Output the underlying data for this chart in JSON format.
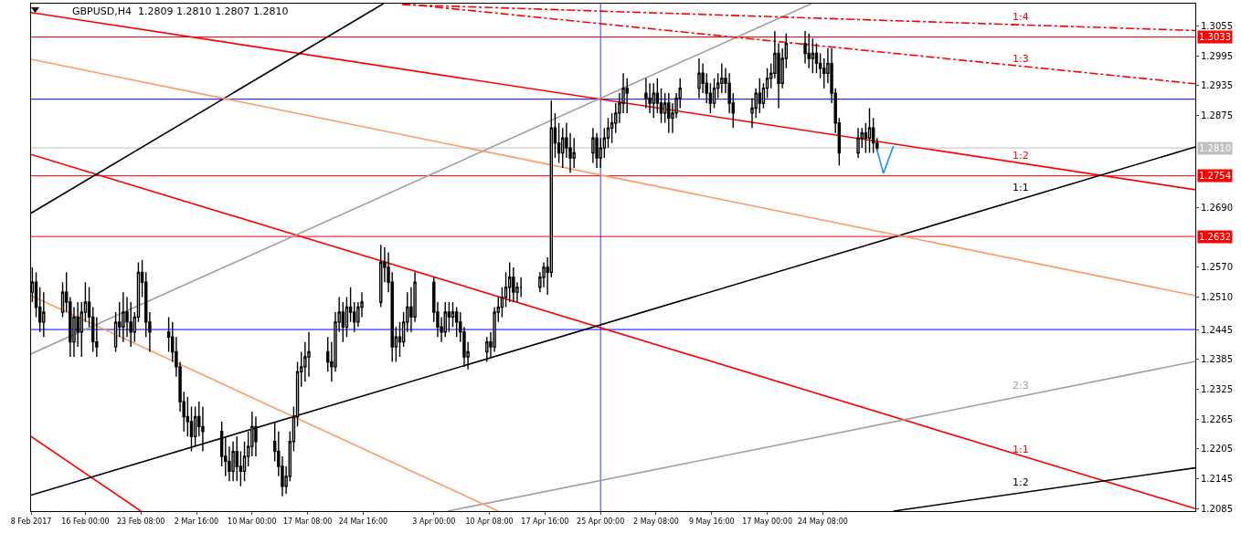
{
  "chart_data": {
    "type": "candlestick",
    "title": "GBPUSD,H4  1.2809 1.2810 1.2807 1.2810",
    "color": "#000000",
    "x": [
      "2017-02-09T00:00",
      "2017-02-09T12:00",
      "2017-02-10T00:00",
      "2017-02-10T12:00",
      "2017-02-13T00:00",
      "2017-02-13T12:00",
      "2017-02-14T00:00",
      "2017-02-14T12:00",
      "2017-02-15T00:00",
      "2017-02-15T12:00",
      "2017-02-16T00:00",
      "2017-02-16T12:00",
      "2017-02-17T00:00",
      "2017-02-17T12:00",
      "2017-02-20T00:00",
      "2017-02-20T12:00",
      "2017-02-21T00:00",
      "2017-02-21T12:00",
      "2017-02-22T00:00",
      "2017-02-22T12:00",
      "2017-02-23T00:00",
      "2017-02-23T12:00",
      "2017-02-24T00:00",
      "2017-02-24T12:00",
      "2017-02-27T00:00",
      "2017-02-27T12:00",
      "2017-02-28T00:00",
      "2017-02-28T12:00",
      "2017-03-01T00:00",
      "2017-03-01T12:00",
      "2017-03-02T00:00",
      "2017-03-02T12:00",
      "2017-03-03T00:00",
      "2017-03-03T12:00",
      "2017-03-06T00:00",
      "2017-03-06T12:00",
      "2017-03-07T00:00",
      "2017-03-07T12:00",
      "2017-03-08T00:00",
      "2017-03-08T12:00",
      "2017-03-09T00:00",
      "2017-03-09T12:00",
      "2017-03-10T00:00",
      "2017-03-10T12:00",
      "2017-03-13T00:00",
      "2017-03-13T12:00",
      "2017-03-14T00:00",
      "2017-03-14T12:00",
      "2017-03-15T00:00",
      "2017-03-15T12:00",
      "2017-03-16T00:00",
      "2017-03-16T12:00",
      "2017-03-17T00:00",
      "2017-03-17T12:00",
      "2017-03-20T00:00",
      "2017-03-20T12:00",
      "2017-03-21T00:00",
      "2017-03-21T12:00",
      "2017-03-22T00:00",
      "2017-03-22T12:00",
      "2017-03-23T00:00",
      "2017-03-23T12:00",
      "2017-03-24T00:00",
      "2017-03-24T12:00",
      "2017-03-27T00:00",
      "2017-03-27T12:00",
      "2017-03-28T00:00",
      "2017-03-28T12:00",
      "2017-03-29T00:00",
      "2017-03-29T12:00",
      "2017-03-30T00:00",
      "2017-03-30T12:00",
      "2017-03-31T00:00",
      "2017-03-31T12:00",
      "2017-04-03T00:00",
      "2017-04-03T12:00",
      "2017-04-04T00:00",
      "2017-04-04T12:00",
      "2017-04-05T00:00",
      "2017-04-05T12:00",
      "2017-04-06T00:00",
      "2017-04-06T12:00",
      "2017-04-07T00:00",
      "2017-04-07T12:00",
      "2017-04-10T00:00",
      "2017-04-10T12:00",
      "2017-04-11T00:00",
      "2017-04-11T12:00",
      "2017-04-12T00:00",
      "2017-04-12T12:00",
      "2017-04-13T00:00",
      "2017-04-13T12:00",
      "2017-04-14T00:00",
      "2017-04-14T12:00",
      "2017-04-17T00:00",
      "2017-04-17T12:00",
      "2017-04-18T00:00",
      "2017-04-18T12:00",
      "2017-04-19T00:00",
      "2017-04-19T12:00",
      "2017-04-20T00:00",
      "2017-04-20T12:00",
      "2017-04-21T00:00",
      "2017-04-21T12:00",
      "2017-04-24T00:00",
      "2017-04-24T12:00",
      "2017-04-25T00:00",
      "2017-04-25T12:00",
      "2017-04-26T00:00",
      "2017-04-26T12:00",
      "2017-04-27T00:00",
      "2017-04-27T12:00",
      "2017-04-28T00:00",
      "2017-04-28T12:00",
      "2017-05-01T00:00",
      "2017-05-01T12:00",
      "2017-05-02T00:00",
      "2017-05-02T12:00",
      "2017-05-03T00:00",
      "2017-05-03T12:00",
      "2017-05-04T00:00",
      "2017-05-04T12:00",
      "2017-05-05T00:00",
      "2017-05-05T12:00",
      "2017-05-08T00:00",
      "2017-05-08T12:00",
      "2017-05-09T00:00",
      "2017-05-09T12:00",
      "2017-05-10T00:00",
      "2017-05-10T12:00",
      "2017-05-11T00:00",
      "2017-05-11T12:00",
      "2017-05-12T00:00",
      "2017-05-12T12:00",
      "2017-05-15T00:00",
      "2017-05-15T12:00",
      "2017-05-16T00:00",
      "2017-05-16T12:00",
      "2017-05-17T00:00",
      "2017-05-17T12:00",
      "2017-05-18T00:00",
      "2017-05-18T12:00",
      "2017-05-19T00:00",
      "2017-05-19T12:00",
      "2017-05-22T00:00",
      "2017-05-22T12:00",
      "2017-05-23T00:00",
      "2017-05-23T12:00",
      "2017-05-24T00:00",
      "2017-05-24T12:00",
      "2017-05-25T00:00",
      "2017-05-25T12:00",
      "2017-05-26T00:00",
      "2017-05-26T12:00",
      "2017-05-29T00:00",
      "2017-05-29T12:00",
      "2017-05-30T00:00",
      "2017-05-30T12:00",
      "2017-05-31T00:00",
      "2017-05-31T12:00"
    ],
    "ohlc": [
      [
        1.252,
        1.257,
        1.25,
        1.254
      ],
      [
        1.254,
        1.256,
        1.247,
        1.249
      ],
      [
        1.249,
        1.253,
        1.244,
        1.246
      ],
      [
        1.246,
        1.252,
        1.243,
        1.248
      ],
      [
        1.248,
        1.254,
        1.247,
        1.252
      ],
      [
        1.252,
        1.256,
        1.248,
        1.25
      ],
      [
        1.25,
        1.251,
        1.239,
        1.242
      ],
      [
        1.242,
        1.249,
        1.239,
        1.247
      ],
      [
        1.247,
        1.25,
        1.241,
        1.244
      ],
      [
        1.244,
        1.25,
        1.239,
        1.248
      ],
      [
        1.248,
        1.254,
        1.246,
        1.25
      ],
      [
        1.25,
        1.253,
        1.245,
        1.247
      ],
      [
        1.247,
        1.249,
        1.24,
        1.242
      ],
      [
        1.242,
        1.247,
        1.239,
        1.241
      ],
      [
        1.241,
        1.248,
        1.24,
        1.246
      ],
      [
        1.246,
        1.25,
        1.243,
        1.245
      ],
      [
        1.245,
        1.252,
        1.242,
        1.248
      ],
      [
        1.248,
        1.251,
        1.243,
        1.246
      ],
      [
        1.246,
        1.25,
        1.241,
        1.244
      ],
      [
        1.244,
        1.248,
        1.242,
        1.247
      ],
      [
        1.247,
        1.258,
        1.246,
        1.256
      ],
      [
        1.256,
        1.2585,
        1.251,
        1.254
      ],
      [
        1.254,
        1.256,
        1.243,
        1.246
      ],
      [
        1.246,
        1.248,
        1.24,
        1.244
      ],
      [
        1.244,
        1.247,
        1.24,
        1.243
      ],
      [
        1.243,
        1.246,
        1.238,
        1.24
      ],
      [
        1.24,
        1.243,
        1.235,
        1.237
      ],
      [
        1.237,
        1.238,
        1.228,
        1.23
      ],
      [
        1.23,
        1.232,
        1.224,
        1.227
      ],
      [
        1.227,
        1.231,
        1.223,
        1.226
      ],
      [
        1.226,
        1.229,
        1.22,
        1.223
      ],
      [
        1.223,
        1.229,
        1.221,
        1.227
      ],
      [
        1.227,
        1.23,
        1.223,
        1.225
      ],
      [
        1.225,
        1.229,
        1.22,
        1.224
      ],
      [
        1.224,
        1.226,
        1.217,
        1.219
      ],
      [
        1.219,
        1.223,
        1.215,
        1.218
      ],
      [
        1.218,
        1.221,
        1.214,
        1.216
      ],
      [
        1.216,
        1.222,
        1.214,
        1.22
      ],
      [
        1.22,
        1.223,
        1.214,
        1.217
      ],
      [
        1.217,
        1.22,
        1.213,
        1.216
      ],
      [
        1.216,
        1.222,
        1.214,
        1.219
      ],
      [
        1.219,
        1.224,
        1.217,
        1.221
      ],
      [
        1.221,
        1.228,
        1.219,
        1.225
      ],
      [
        1.225,
        1.227,
        1.219,
        1.222
      ],
      [
        1.222,
        1.226,
        1.218,
        1.22
      ],
      [
        1.22,
        1.224,
        1.215,
        1.217
      ],
      [
        1.217,
        1.219,
        1.211,
        1.213
      ],
      [
        1.213,
        1.217,
        1.2115,
        1.215
      ],
      [
        1.215,
        1.224,
        1.214,
        1.222
      ],
      [
        1.222,
        1.229,
        1.22,
        1.227
      ],
      [
        1.227,
        1.238,
        1.225,
        1.236
      ],
      [
        1.236,
        1.24,
        1.233,
        1.237
      ],
      [
        1.237,
        1.242,
        1.234,
        1.239
      ],
      [
        1.239,
        1.244,
        1.235,
        1.24
      ],
      [
        1.24,
        1.243,
        1.236,
        1.238
      ],
      [
        1.238,
        1.242,
        1.234,
        1.237
      ],
      [
        1.237,
        1.248,
        1.236,
        1.246
      ],
      [
        1.246,
        1.251,
        1.244,
        1.248
      ],
      [
        1.248,
        1.25,
        1.242,
        1.245
      ],
      [
        1.245,
        1.251,
        1.243,
        1.249
      ],
      [
        1.249,
        1.253,
        1.246,
        1.248
      ],
      [
        1.248,
        1.25,
        1.244,
        1.246
      ],
      [
        1.246,
        1.25,
        1.245,
        1.249
      ],
      [
        1.249,
        1.252,
        1.247,
        1.25
      ],
      [
        1.25,
        1.2615,
        1.249,
        1.258
      ],
      [
        1.258,
        1.261,
        1.254,
        1.257
      ],
      [
        1.257,
        1.26,
        1.252,
        1.254
      ],
      [
        1.254,
        1.256,
        1.238,
        1.241
      ],
      [
        1.241,
        1.245,
        1.238,
        1.243
      ],
      [
        1.243,
        1.246,
        1.239,
        1.242
      ],
      [
        1.242,
        1.248,
        1.241,
        1.246
      ],
      [
        1.246,
        1.252,
        1.244,
        1.249
      ],
      [
        1.249,
        1.253,
        1.244,
        1.247
      ],
      [
        1.247,
        1.256,
        1.246,
        1.254
      ],
      [
        1.254,
        1.255,
        1.246,
        1.248
      ],
      [
        1.248,
        1.25,
        1.243,
        1.245
      ],
      [
        1.245,
        1.247,
        1.242,
        1.244
      ],
      [
        1.244,
        1.25,
        1.243,
        1.248
      ],
      [
        1.248,
        1.25,
        1.244,
        1.247
      ],
      [
        1.247,
        1.25,
        1.245,
        1.248
      ],
      [
        1.248,
        1.249,
        1.243,
        1.246
      ],
      [
        1.246,
        1.248,
        1.242,
        1.244
      ],
      [
        1.244,
        1.245,
        1.237,
        1.239
      ],
      [
        1.239,
        1.242,
        1.2365,
        1.24
      ],
      [
        1.24,
        1.243,
        1.238,
        1.242
      ],
      [
        1.242,
        1.244,
        1.239,
        1.241
      ],
      [
        1.241,
        1.249,
        1.24,
        1.248
      ],
      [
        1.248,
        1.251,
        1.246,
        1.249
      ],
      [
        1.249,
        1.253,
        1.247,
        1.251
      ],
      [
        1.251,
        1.256,
        1.249,
        1.253
      ],
      [
        1.253,
        1.258,
        1.25,
        1.255
      ],
      [
        1.255,
        1.257,
        1.25,
        1.252
      ],
      [
        1.252,
        1.254,
        1.25,
        1.253
      ],
      [
        1.253,
        1.255,
        1.251,
        1.253
      ],
      [
        1.253,
        1.256,
        1.252,
        1.255
      ],
      [
        1.255,
        1.258,
        1.253,
        1.257
      ],
      [
        1.257,
        1.259,
        1.2515,
        1.256
      ],
      [
        1.256,
        1.2905,
        1.255,
        1.285
      ],
      [
        1.285,
        1.288,
        1.279,
        1.282
      ],
      [
        1.282,
        1.286,
        1.278,
        1.28
      ],
      [
        1.28,
        1.285,
        1.277,
        1.283
      ],
      [
        1.283,
        1.286,
        1.279,
        1.281
      ],
      [
        1.281,
        1.284,
        1.276,
        1.279
      ],
      [
        1.279,
        1.283,
        1.277,
        1.28
      ],
      [
        1.28,
        1.285,
        1.278,
        1.283
      ],
      [
        1.283,
        1.284,
        1.277,
        1.279
      ],
      [
        1.279,
        1.283,
        1.277,
        1.281
      ],
      [
        1.281,
        1.285,
        1.279,
        1.283
      ],
      [
        1.283,
        1.287,
        1.281,
        1.285
      ],
      [
        1.285,
        1.288,
        1.282,
        1.286
      ],
      [
        1.286,
        1.29,
        1.284,
        1.288
      ],
      [
        1.288,
        1.292,
        1.286,
        1.29
      ],
      [
        1.29,
        1.296,
        1.288,
        1.293
      ],
      [
        1.293,
        1.295,
        1.288,
        1.292
      ],
      [
        1.292,
        1.295,
        1.289,
        1.291
      ],
      [
        1.291,
        1.294,
        1.288,
        1.29
      ],
      [
        1.29,
        1.294,
        1.287,
        1.292
      ],
      [
        1.292,
        1.295,
        1.288,
        1.29
      ],
      [
        1.29,
        1.293,
        1.286,
        1.288
      ],
      [
        1.288,
        1.292,
        1.286,
        1.29
      ],
      [
        1.29,
        1.292,
        1.284,
        1.287
      ],
      [
        1.287,
        1.29,
        1.284,
        1.288
      ],
      [
        1.288,
        1.292,
        1.287,
        1.291
      ],
      [
        1.291,
        1.295,
        1.289,
        1.293
      ],
      [
        1.293,
        1.299,
        1.291,
        1.296
      ],
      [
        1.296,
        1.298,
        1.292,
        1.294
      ],
      [
        1.294,
        1.296,
        1.29,
        1.292
      ],
      [
        1.292,
        1.294,
        1.288,
        1.29
      ],
      [
        1.29,
        1.295,
        1.289,
        1.293
      ],
      [
        1.293,
        1.296,
        1.291,
        1.294
      ],
      [
        1.294,
        1.298,
        1.292,
        1.295
      ],
      [
        1.295,
        1.297,
        1.292,
        1.294
      ],
      [
        1.294,
        1.296,
        1.288,
        1.29
      ],
      [
        1.29,
        1.292,
        1.285,
        1.288
      ],
      [
        1.288,
        1.291,
        1.285,
        1.289
      ],
      [
        1.289,
        1.293,
        1.287,
        1.292
      ],
      [
        1.292,
        1.295,
        1.288,
        1.29
      ],
      [
        1.29,
        1.294,
        1.289,
        1.293
      ],
      [
        1.293,
        1.297,
        1.291,
        1.295
      ],
      [
        1.295,
        1.298,
        1.293,
        1.296
      ],
      [
        1.296,
        1.3045,
        1.295,
        1.3
      ],
      [
        1.3,
        1.302,
        1.289,
        1.294
      ],
      [
        1.294,
        1.301,
        1.293,
        1.299
      ],
      [
        1.299,
        1.304,
        1.297,
        1.302
      ],
      [
        1.302,
        1.3045,
        1.298,
        1.3
      ],
      [
        1.3,
        1.304,
        1.297,
        1.299
      ],
      [
        1.299,
        1.303,
        1.296,
        1.3
      ],
      [
        1.3,
        1.302,
        1.296,
        1.298
      ],
      [
        1.298,
        1.3,
        1.295,
        1.297
      ],
      [
        1.297,
        1.299,
        1.293,
        1.296
      ],
      [
        1.296,
        1.301,
        1.294,
        1.298
      ],
      [
        1.298,
        1.301,
        1.29,
        1.292
      ],
      [
        1.292,
        1.293,
        1.284,
        1.286
      ],
      [
        1.286,
        1.287,
        1.2775,
        1.28
      ],
      [
        1.28,
        1.285,
        1.279,
        1.283
      ],
      [
        1.283,
        1.285,
        1.281,
        1.284
      ],
      [
        1.284,
        1.286,
        1.28,
        1.283
      ],
      [
        1.283,
        1.289,
        1.28,
        1.285
      ],
      [
        1.285,
        1.287,
        1.28,
        1.282
      ],
      [
        1.282,
        1.283,
        1.2805,
        1.281
      ]
    ],
    "series": [
      {
        "type": "line",
        "name": "1:2",
        "color": "#ff0000",
        "x": [
          "2017-02-08T20:00",
          "2017-07-12T12:00"
        ],
        "values": [
          1.3082,
          1.2726
        ]
      },
      {
        "type": "line",
        "name": "1:1",
        "color": "#ff0000",
        "x": [
          "2017-02-08T20:00",
          "2017-07-12T12:00"
        ],
        "values": [
          1.2797,
          1.2085
        ]
      },
      {
        "type": "line",
        "color": "#ff0000",
        "x": [
          "2017-02-08T20:00",
          "2017-02-23T08:00"
        ],
        "values": [
          1.223,
          1.208
        ]
      },
      {
        "type": "line",
        "name": "1:1",
        "color": "#000000",
        "x": [
          "2017-02-08T20:00",
          "2017-07-12T12:00"
        ],
        "values": [
          1.2112,
          1.2812
        ]
      },
      {
        "type": "line",
        "color": "#000000",
        "x": [
          "2017-02-08T20:00",
          "2017-03-27T08:00"
        ],
        "values": [
          1.2679,
          1.31
        ]
      },
      {
        "type": "line",
        "name": "1:2",
        "color": "#000000",
        "x": [
          "2017-06-02T16:00",
          "2017-07-12T12:00"
        ],
        "values": [
          1.208,
          1.2167
        ]
      },
      {
        "type": "line",
        "color": "#a0a0a0",
        "x": [
          "2017-02-08T20:00",
          "2017-05-22T20:00"
        ],
        "values": [
          1.2396,
          1.31
        ]
      },
      {
        "type": "line",
        "name": "2:3",
        "color": "#a0a0a0",
        "x": [
          "2017-04-04T20:00",
          "2017-07-12T12:00"
        ],
        "values": [
          1.208,
          1.2381
        ]
      },
      {
        "type": "line",
        "color": "#ff9966",
        "x": [
          "2017-02-08T20:00",
          "2017-07-12T12:00"
        ],
        "values": [
          1.2988,
          1.2513
        ]
      },
      {
        "type": "line",
        "color": "#ff9966",
        "x": [
          "2017-02-08T20:00",
          "2017-04-11T12:00"
        ],
        "values": [
          1.2513,
          1.208
        ]
      },
      {
        "type": "line",
        "name": "1:4",
        "color": "#ff0000",
        "line_style": "dashed",
        "x": [
          "2017-03-29T20:00",
          "2017-07-12T12:00"
        ],
        "values": [
          1.3098,
          1.3046
        ]
      },
      {
        "type": "line",
        "name": "1:3",
        "color": "#ff0000",
        "line_style": "dashed",
        "x": [
          "2017-03-29T20:00",
          "2017-07-12T12:00"
        ],
        "values": [
          1.31,
          1.2939
        ]
      },
      {
        "type": "line",
        "color": "#1e90ff",
        "x": [
          "2017-05-31T12:00",
          "2017-06-01T08:00",
          "2017-06-02T16:00"
        ],
        "values": [
          1.2805,
          1.2759,
          1.2814
        ]
      }
    ],
    "ref_lines": [
      {
        "axis": "y",
        "value": 1.3033,
        "label": "1.3033",
        "color": "#ff0000"
      },
      {
        "axis": "y",
        "value": 1.2754,
        "label": "1.2754",
        "color": "#ff0000"
      },
      {
        "axis": "y",
        "value": 1.2632,
        "label": "1.2632",
        "color": "#ff0000"
      },
      {
        "axis": "y",
        "value": 1.281,
        "label": "1.2810",
        "color": "#c0c0c0"
      },
      {
        "axis": "y",
        "value": 1.2908,
        "color": "#0000ff"
      },
      {
        "axis": "y",
        "value": 1.2445,
        "color": "#0000ff"
      },
      {
        "axis": "x",
        "value": "2017-04-25T00:00",
        "color": "#0000ff"
      }
    ],
    "xlim": [
      "2017-02-08T20:00",
      "2017-07-12T12:00"
    ],
    "xticks": [
      {
        "value": "2017-02-08T20:00",
        "label": "8 Feb 2017"
      },
      {
        "value": "2017-02-16T00:00",
        "label": "16 Feb 00:00"
      },
      {
        "value": "2017-02-23T08:00",
        "label": "23 Feb 08:00"
      },
      {
        "value": "2017-03-02T16:00",
        "label": "2 Mar 16:00"
      },
      {
        "value": "2017-03-10T00:00",
        "label": "10 Mar 00:00"
      },
      {
        "value": "2017-03-17T08:00",
        "label": "17 Mar 08:00"
      },
      {
        "value": "2017-03-24T16:00",
        "label": "24 Mar 16:00"
      },
      {
        "value": "2017-04-03T00:00",
        "label": "3 Apr 00:00"
      },
      {
        "value": "2017-04-10T08:00",
        "label": "10 Apr 08:00"
      },
      {
        "value": "2017-04-17T16:00",
        "label": "17 Apr 16:00"
      },
      {
        "value": "2017-04-25T00:00",
        "label": "25 Apr 00:00"
      },
      {
        "value": "2017-05-02T08:00",
        "label": "2 May 08:00"
      },
      {
        "value": "2017-05-09T16:00",
        "label": "9 May 16:00"
      },
      {
        "value": "2017-05-17T00:00",
        "label": "17 May 00:00"
      },
      {
        "value": "2017-05-24T08:00",
        "label": "24 May 08:00"
      }
    ],
    "ylim": [
      1.208,
      1.31
    ],
    "yticks": [
      {
        "value": 1.3055,
        "label": "1.3055"
      },
      {
        "value": 1.2995,
        "label": "1.2995"
      },
      {
        "value": 1.2935,
        "label": "1.2935"
      },
      {
        "value": 1.2875,
        "label": "1.2875"
      },
      {
        "value": 1.269,
        "label": "1.2690"
      },
      {
        "value": 1.257,
        "label": "1.2570"
      },
      {
        "value": 1.251,
        "label": "1.2510"
      },
      {
        "value": 1.2445,
        "label": "1.2445"
      },
      {
        "value": 1.2385,
        "label": "1.2385"
      },
      {
        "value": 1.2325,
        "label": "1.2325"
      },
      {
        "value": 1.2265,
        "label": "1.2265"
      },
      {
        "value": 1.2205,
        "label": "1.2205"
      },
      {
        "value": 1.2145,
        "label": "1.2145"
      },
      {
        "value": 1.2085,
        "label": "1.2085"
      }
    ]
  }
}
